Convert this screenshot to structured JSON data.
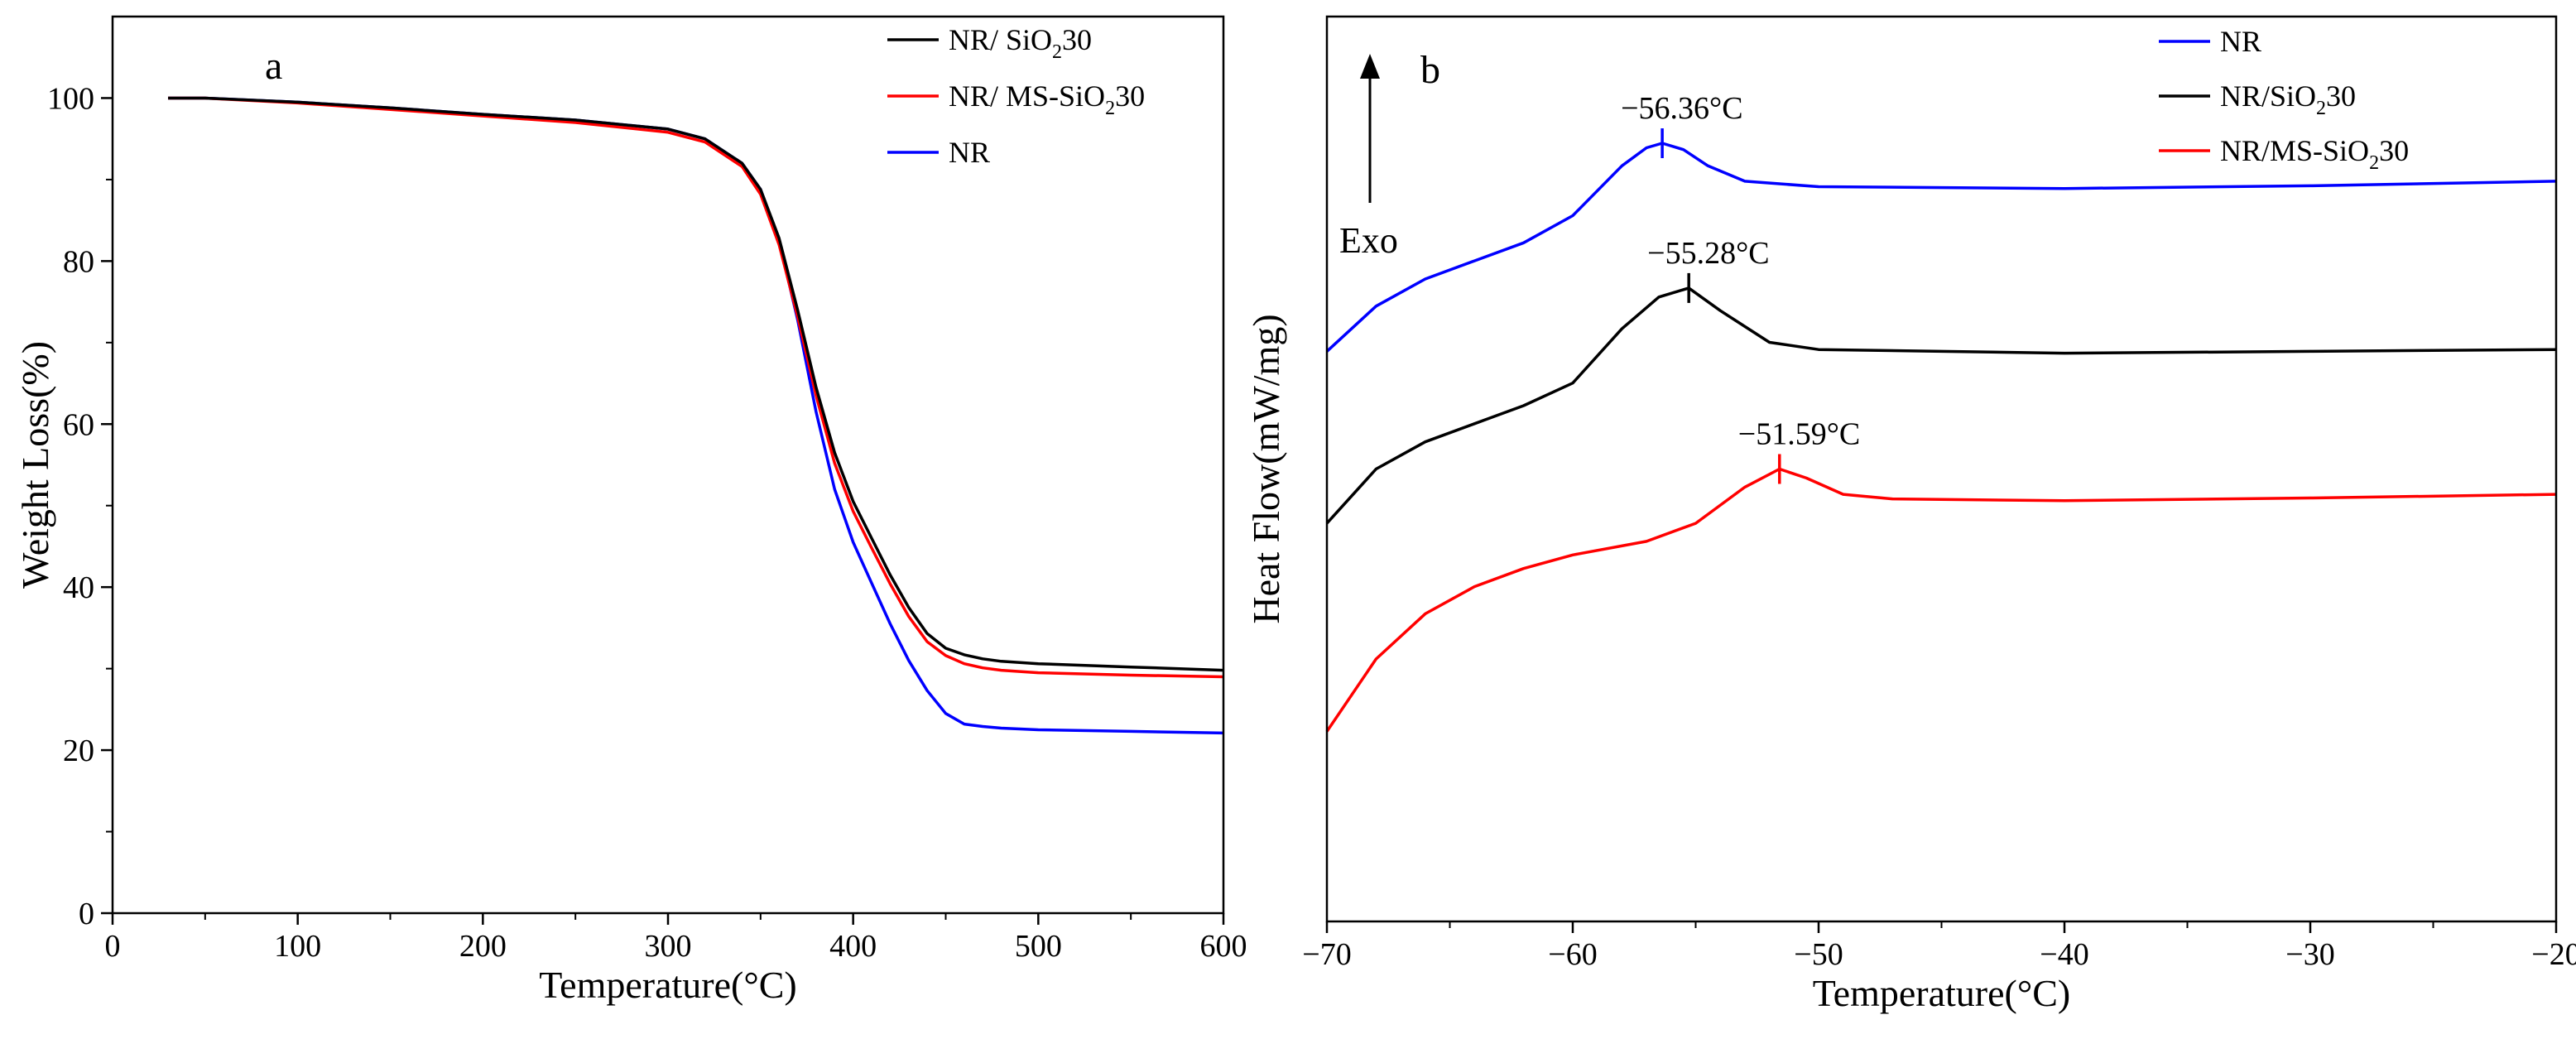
{
  "chart_data": [
    {
      "type": "line",
      "panel_label": "a",
      "xlabel": "Temperature(°C)",
      "ylabel": "Weight Loss(%)",
      "xlim": [
        0,
        600
      ],
      "ylim": [
        0,
        110
      ],
      "xticks": [
        0,
        100,
        200,
        300,
        400,
        500,
        600
      ],
      "yticks": [
        0,
        20,
        40,
        60,
        80,
        100
      ],
      "legend_position": "top-right",
      "series": [
        {
          "name": "NR/ SiO₂ 30",
          "legend_main": "NR/ SiO",
          "legend_sub": "2",
          "legend_tail": "30",
          "color": "#000000",
          "x": [
            30,
            50,
            100,
            150,
            200,
            250,
            300,
            320,
            340,
            350,
            360,
            370,
            380,
            390,
            400,
            410,
            420,
            430,
            440,
            450,
            460,
            470,
            480,
            500,
            550,
            600
          ],
          "y": [
            100,
            100,
            99.5,
            98.8,
            98.0,
            97.3,
            96.2,
            95.0,
            92.0,
            88.8,
            82.8,
            74.0,
            64.5,
            56.5,
            50.5,
            46.0,
            41.5,
            37.5,
            34.3,
            32.5,
            31.7,
            31.2,
            30.9,
            30.6,
            30.2,
            29.8
          ]
        },
        {
          "name": "NR/ MS-SiO₂ 30",
          "legend_main": "NR/ MS-SiO",
          "legend_sub": "2",
          "legend_tail": "30",
          "color": "#ff0000",
          "x": [
            30,
            50,
            100,
            150,
            200,
            250,
            300,
            320,
            340,
            350,
            360,
            370,
            380,
            390,
            400,
            410,
            420,
            430,
            440,
            450,
            460,
            470,
            480,
            500,
            550,
            600
          ],
          "y": [
            100,
            100,
            99.4,
            98.6,
            97.8,
            97.0,
            95.8,
            94.6,
            91.6,
            88.2,
            82.0,
            73.2,
            63.5,
            55.2,
            49.3,
            44.8,
            40.4,
            36.4,
            33.3,
            31.6,
            30.6,
            30.1,
            29.8,
            29.5,
            29.2,
            29.0
          ]
        },
        {
          "name": "NR",
          "legend_main": "NR",
          "legend_sub": "",
          "legend_tail": "",
          "color": "#0000ff",
          "x": [
            30,
            50,
            100,
            150,
            200,
            250,
            300,
            320,
            340,
            350,
            360,
            370,
            380,
            390,
            400,
            410,
            420,
            430,
            440,
            450,
            460,
            470,
            480,
            500,
            550,
            600
          ],
          "y": [
            100,
            100,
            99.5,
            98.8,
            98.0,
            97.3,
            96.2,
            95.0,
            92.0,
            88.8,
            82.5,
            72.8,
            61.5,
            52.0,
            45.5,
            40.5,
            35.5,
            31.0,
            27.3,
            24.5,
            23.2,
            22.9,
            22.7,
            22.5,
            22.3,
            22.1
          ]
        }
      ]
    },
    {
      "type": "line",
      "panel_label": "b",
      "xlabel": "Temperature(°C)",
      "ylabel": "Heat Flow(mW/mg)",
      "xlim": [
        -70,
        -20
      ],
      "ylim": [
        0,
        100
      ],
      "xticks": [
        -70,
        -60,
        -50,
        -40,
        -30,
        -20
      ],
      "xtick_labels": [
        "−70",
        "−60",
        "−50",
        "−40",
        "−30",
        "−20"
      ],
      "yticks_shown": false,
      "exo_label": "Exo",
      "legend_position": "top-right",
      "series": [
        {
          "name": "NR",
          "legend_main": "NR",
          "legend_sub": "",
          "legend_tail": "",
          "color": "#0000ff",
          "x": [
            -70,
            -68,
            -66,
            -64,
            -62,
            -60,
            -58,
            -57,
            -56.36,
            -55.5,
            -54.5,
            -53,
            -50,
            -40,
            -30,
            -20
          ],
          "y": [
            63,
            68,
            71,
            73,
            75,
            78,
            83.5,
            85.5,
            86,
            85.3,
            83.5,
            81.8,
            81.2,
            81,
            81.3,
            81.8
          ]
        },
        {
          "name": "NR/SiO₂ 30",
          "legend_main": "NR/SiO",
          "legend_sub": "2",
          "legend_tail": "30",
          "color": "#000000",
          "x": [
            -70,
            -68,
            -66,
            -64,
            -62,
            -60,
            -58,
            -56.5,
            -55.28,
            -54,
            -52,
            -50,
            -40,
            -30,
            -20
          ],
          "y": [
            44,
            50,
            53,
            55,
            57,
            59.5,
            65.5,
            69,
            70,
            67.5,
            64,
            63.2,
            62.8,
            63,
            63.2
          ]
        },
        {
          "name": "NR/MS-SiO₂ 30",
          "legend_main": "NR/MS-SiO",
          "legend_sub": "2",
          "legend_tail": "30",
          "color": "#ff0000",
          "x": [
            -70,
            -68,
            -66,
            -64,
            -62,
            -60,
            -57,
            -55,
            -53,
            -51.59,
            -50.5,
            -49,
            -47,
            -40,
            -30,
            -20
          ],
          "y": [
            21,
            29,
            34,
            37,
            39,
            40.5,
            42,
            44,
            48,
            50,
            49,
            47.2,
            46.7,
            46.5,
            46.8,
            47.2
          ]
        }
      ],
      "annotations": [
        {
          "text": "−56.36°C",
          "x": -56.36,
          "y": 86,
          "color": "#0000ff"
        },
        {
          "text": "−55.28°C",
          "x": -55.28,
          "y": 70,
          "color": "#000000"
        },
        {
          "text": "−51.59°C",
          "x": -51.59,
          "y": 50,
          "color": "#ff0000"
        }
      ]
    }
  ]
}
